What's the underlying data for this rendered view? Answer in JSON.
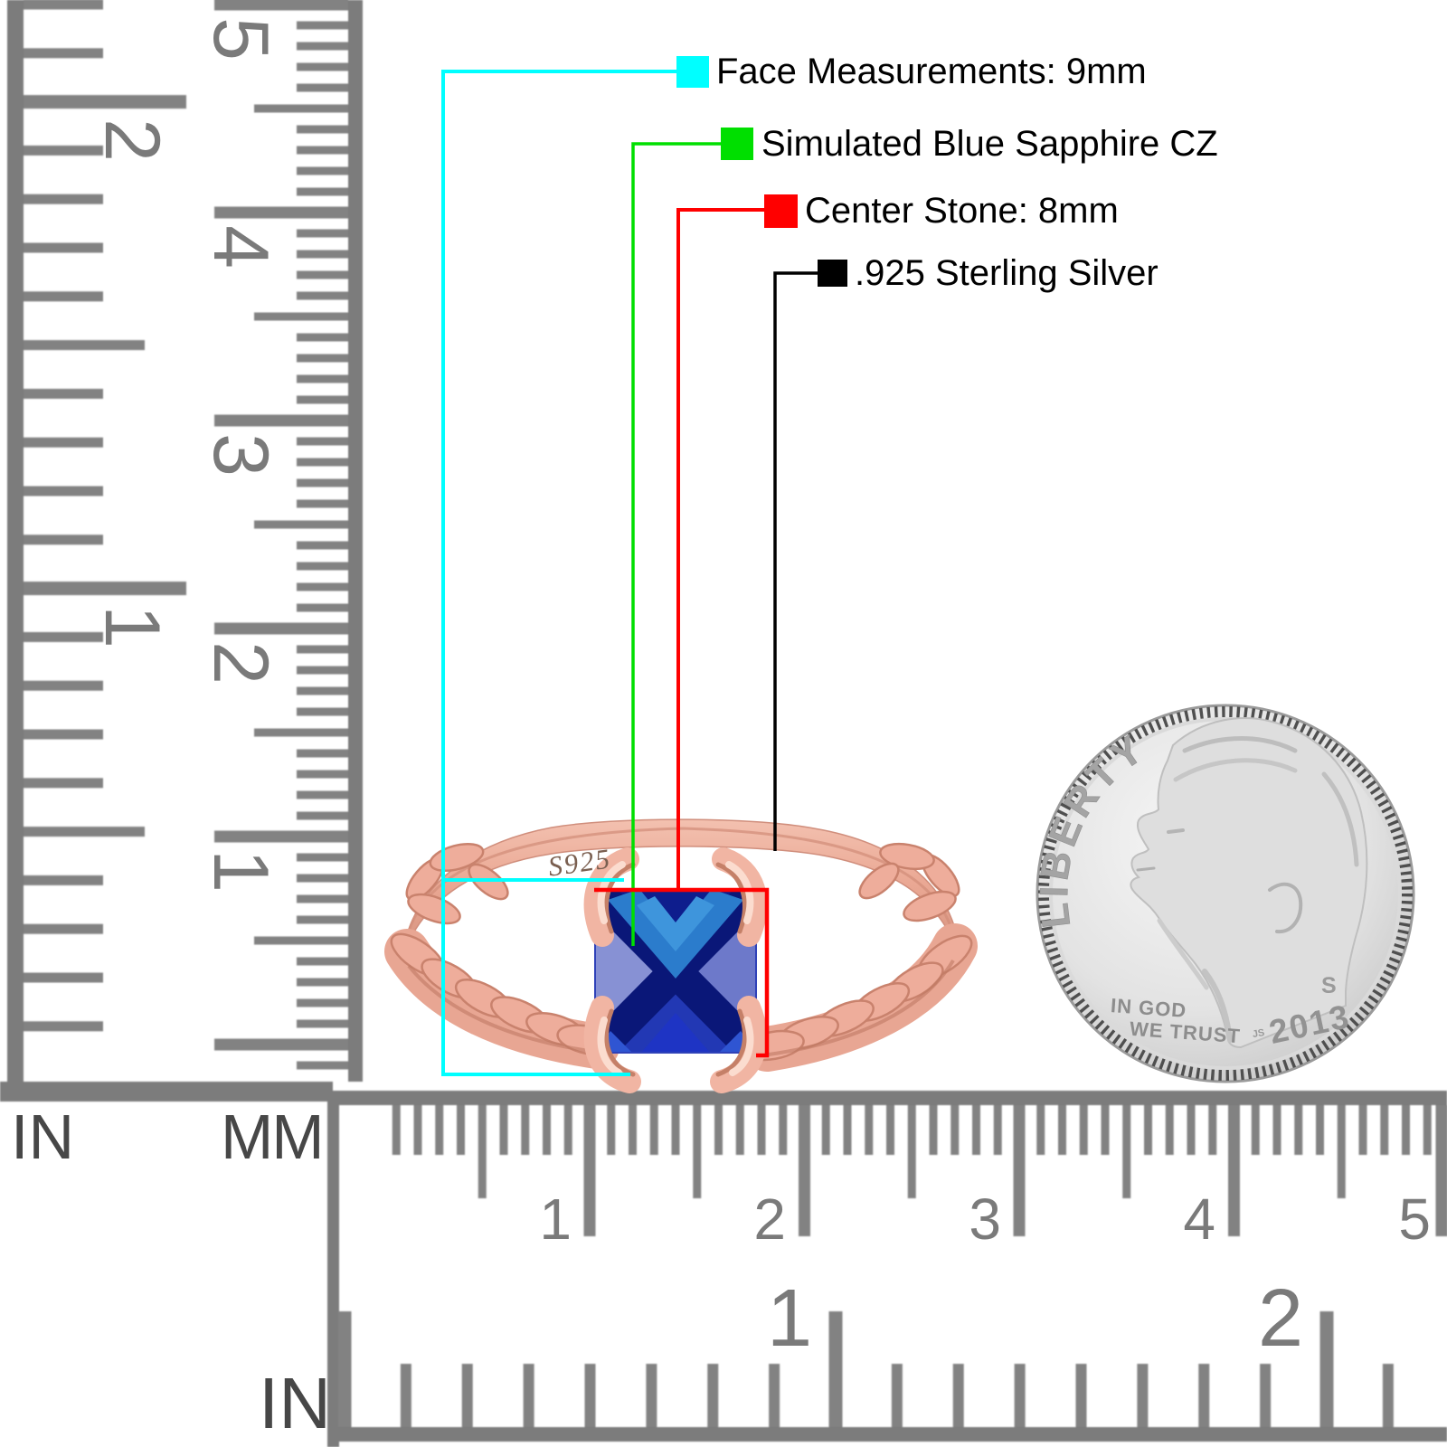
{
  "callouts": [
    {
      "id": "face",
      "label": "Face Measurements: 9mm",
      "color": "#00FFFF"
    },
    {
      "id": "stone-type",
      "label": "Simulated Blue Sapphire CZ",
      "color": "#00DF00"
    },
    {
      "id": "center-stone",
      "label": "Center Stone: 8mm",
      "color": "#FF0000"
    },
    {
      "id": "metal",
      "label": ".925 Sterling Silver",
      "color": "#000000"
    }
  ],
  "ring": {
    "stamp": "S925"
  },
  "coin": {
    "legend": "LIBERTY",
    "motto_line1": "IN GOD",
    "motto_line2": "WE TRUST",
    "year": "2013",
    "mint_mark": "S",
    "designer_initials": "JS"
  },
  "rulers": {
    "left_vertical": {
      "unit": "IN",
      "numbers": [
        "2",
        "1"
      ]
    },
    "inner_vertical": {
      "unit": "MM",
      "numbers": [
        "5",
        "4",
        "3",
        "2",
        "1"
      ]
    },
    "bottom_mm": {
      "numbers": [
        "1",
        "2",
        "3",
        "4",
        "5"
      ]
    },
    "bottom_inch": {
      "unit": "IN",
      "numbers": [
        "1",
        "2"
      ]
    }
  }
}
